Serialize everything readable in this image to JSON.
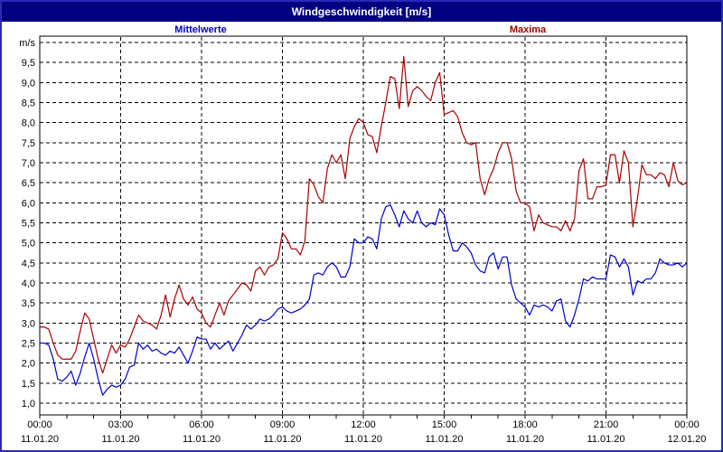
{
  "window": {
    "title": "Windgeschwindigkeit [m/s]"
  },
  "legend": {
    "mean_label": "Mittelwerte",
    "max_label": "Maxima"
  },
  "colors": {
    "titlebar_bg": "#000080",
    "title_text": "#ffffff",
    "window_border": "#2a2ab8",
    "mean_line": "#0000cc",
    "mean_label_text": "#0000cc",
    "max_line": "#aa0000",
    "max_label_text": "#990000",
    "grid": "#000000",
    "axis_text": "#000000",
    "background": "#ffffff"
  },
  "chart_data": {
    "type": "line",
    "title": "Windgeschwindigkeit [m/s]",
    "unit": "m/s",
    "ylim": [
      1.0,
      10.0
    ],
    "ytick_step": 0.5,
    "grid": "dashed",
    "legend_position": "top",
    "ytick_labels_top_to_bottom": [
      "m/s",
      "9,5",
      "9,0",
      "8,5",
      "8,0",
      "7,5",
      "7,0",
      "6,5",
      "6,0",
      "5,5",
      "5,0",
      "4,5",
      "4,0",
      "3,5",
      "3,0",
      "2,5",
      "2,0",
      "1,5",
      "1,0"
    ],
    "xticks": [
      {
        "time": "00:00",
        "date": "11.01.20"
      },
      {
        "time": "03:00",
        "date": "11.01.20"
      },
      {
        "time": "06:00",
        "date": "11.01.20"
      },
      {
        "time": "09:00",
        "date": "11.01.20"
      },
      {
        "time": "12:00",
        "date": "11.01.20"
      },
      {
        "time": "15:00",
        "date": "11.01.20"
      },
      {
        "time": "18:00",
        "date": "11.01.20"
      },
      {
        "time": "21:00",
        "date": "11.01.20"
      },
      {
        "time": "00:00",
        "date": "12.01.20"
      }
    ],
    "x_start_minutes": 0,
    "x_end_minutes": 1440,
    "sample_interval_minutes": 10,
    "series": [
      {
        "name": "Mittelwerte",
        "color": "#0000cc",
        "values": [
          2.5,
          2.5,
          2.45,
          2.1,
          1.6,
          1.55,
          1.65,
          1.8,
          1.45,
          1.75,
          2.15,
          2.5,
          2.1,
          1.6,
          1.2,
          1.35,
          1.45,
          1.4,
          1.45,
          1.6,
          1.9,
          1.95,
          2.5,
          2.35,
          2.45,
          2.3,
          2.35,
          2.25,
          2.2,
          2.3,
          2.25,
          2.4,
          2.2,
          2.0,
          2.3,
          2.65,
          2.6,
          2.6,
          2.35,
          2.5,
          2.35,
          2.45,
          2.55,
          2.3,
          2.5,
          2.7,
          2.95,
          2.85,
          2.95,
          3.1,
          3.05,
          3.1,
          3.2,
          3.35,
          3.4,
          3.3,
          3.25,
          3.3,
          3.35,
          3.45,
          3.6,
          4.2,
          4.25,
          4.2,
          4.4,
          4.5,
          4.4,
          4.15,
          4.15,
          4.4,
          5.1,
          5.0,
          5.0,
          5.15,
          5.1,
          4.85,
          5.6,
          5.9,
          5.95,
          5.7,
          5.4,
          5.8,
          5.6,
          5.5,
          5.8,
          5.5,
          5.4,
          5.5,
          5.45,
          5.85,
          5.7,
          5.2,
          4.8,
          4.8,
          5.0,
          4.9,
          4.75,
          4.45,
          4.3,
          4.25,
          4.65,
          4.75,
          4.35,
          4.65,
          4.65,
          3.95,
          3.6,
          3.5,
          3.4,
          3.2,
          3.45,
          3.4,
          3.45,
          3.4,
          3.3,
          3.55,
          3.6,
          3.05,
          2.9,
          3.2,
          3.6,
          4.1,
          4.05,
          4.15,
          4.1,
          4.1,
          4.1,
          4.7,
          4.65,
          4.4,
          4.6,
          4.4,
          3.7,
          4.05,
          4.0,
          4.1,
          4.1,
          4.25,
          4.6,
          4.5,
          4.45,
          4.45,
          4.5,
          4.4,
          4.5
        ]
      },
      {
        "name": "Maxima",
        "color": "#aa0000",
        "values": [
          2.9,
          2.9,
          2.85,
          2.5,
          2.2,
          2.1,
          2.1,
          2.1,
          2.3,
          2.8,
          3.25,
          3.1,
          2.6,
          2.1,
          1.75,
          2.1,
          2.45,
          2.25,
          2.45,
          2.4,
          2.6,
          2.9,
          3.2,
          3.05,
          3.0,
          2.95,
          2.85,
          3.2,
          3.7,
          3.15,
          3.6,
          3.95,
          3.6,
          3.45,
          3.65,
          3.35,
          3.25,
          3.0,
          2.9,
          3.2,
          3.5,
          3.2,
          3.55,
          3.7,
          3.85,
          4.0,
          3.95,
          3.8,
          4.3,
          4.4,
          4.2,
          4.4,
          4.45,
          4.6,
          5.25,
          5.1,
          4.85,
          4.85,
          4.7,
          5.05,
          6.6,
          6.45,
          6.15,
          6.0,
          6.85,
          7.2,
          7.0,
          7.2,
          6.6,
          7.6,
          7.9,
          8.1,
          8.0,
          7.7,
          7.65,
          7.25,
          7.9,
          8.5,
          9.15,
          9.1,
          8.35,
          9.65,
          8.4,
          8.8,
          8.9,
          8.8,
          8.65,
          8.55,
          9.0,
          9.25,
          8.2,
          8.25,
          8.3,
          8.15,
          7.75,
          7.5,
          7.45,
          7.5,
          6.6,
          6.2,
          6.6,
          6.85,
          7.25,
          7.5,
          7.5,
          7.1,
          6.3,
          6.0,
          6.0,
          5.9,
          5.3,
          5.7,
          5.5,
          5.45,
          5.4,
          5.4,
          5.3,
          5.55,
          5.3,
          5.6,
          6.8,
          7.1,
          6.1,
          6.1,
          6.4,
          6.4,
          6.45,
          7.2,
          7.2,
          6.5,
          7.3,
          7.0,
          5.4,
          6.1,
          6.95,
          6.7,
          6.7,
          6.6,
          6.75,
          6.7,
          6.4,
          7.0,
          6.55,
          6.45,
          6.5
        ]
      }
    ]
  }
}
